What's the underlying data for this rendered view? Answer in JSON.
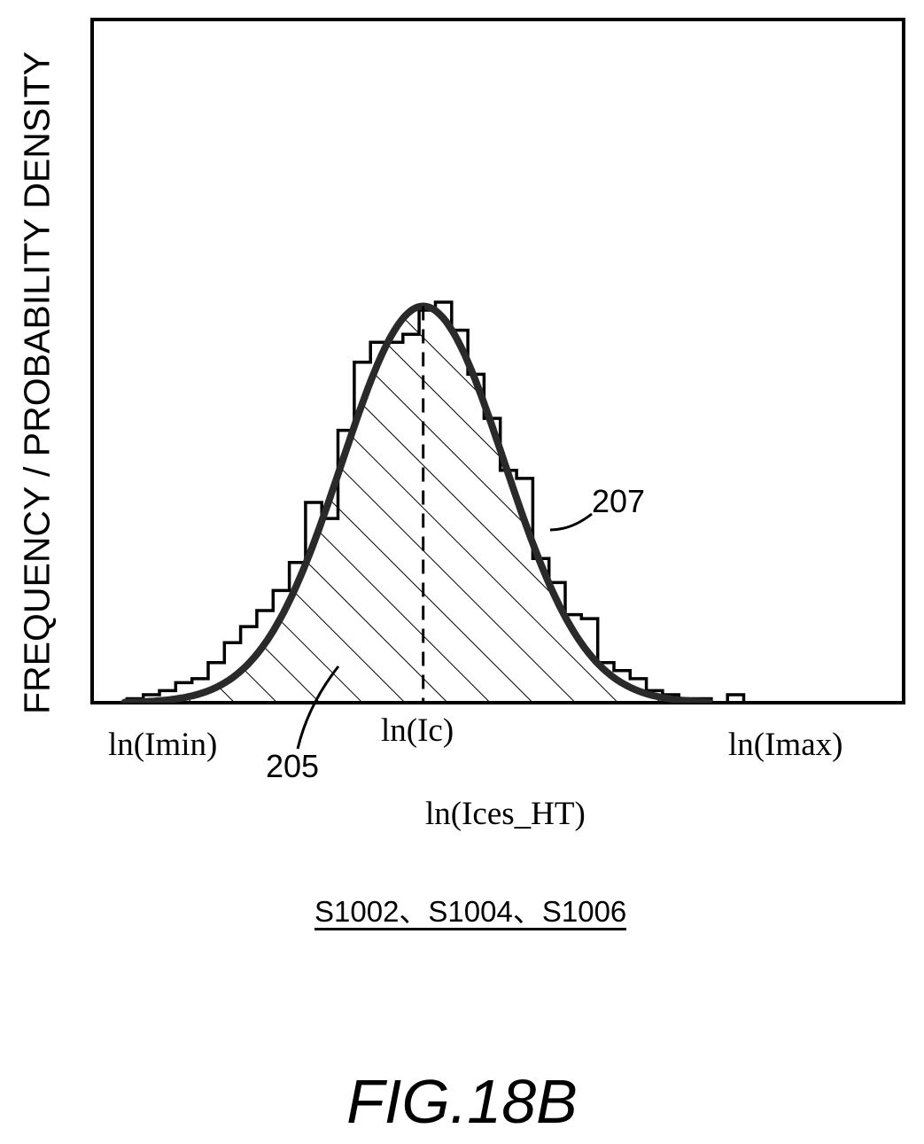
{
  "chart_data": {
    "type": "area",
    "ylabel": "FREQUENCY / PROBABILITY DENSITY",
    "xlabel": "ln(Ices_HT)",
    "x_ticks": [
      "ln(Imin)",
      "ln(Ic)",
      "ln(Imax)"
    ],
    "grid": false,
    "series": [
      {
        "name": "207",
        "kind": "probability-density-curve",
        "mean": 0.408,
        "sd": 0.1,
        "peak": 0.99
      },
      {
        "name": "205",
        "kind": "frequency-histogram",
        "bin_edges": [
          0.043,
          0.063,
          0.083,
          0.103,
          0.123,
          0.143,
          0.163,
          0.183,
          0.203,
          0.223,
          0.243,
          0.263,
          0.283,
          0.303,
          0.323,
          0.343,
          0.363,
          0.383,
          0.403,
          0.423,
          0.443,
          0.463,
          0.483,
          0.503,
          0.523,
          0.543,
          0.563,
          0.583,
          0.603,
          0.623,
          0.643,
          0.663,
          0.683,
          0.703,
          0.723,
          0.743,
          0.763,
          0.783,
          0.803
        ],
        "values": [
          0.01,
          0.02,
          0.03,
          0.05,
          0.06,
          0.1,
          0.15,
          0.19,
          0.23,
          0.28,
          0.35,
          0.5,
          0.46,
          0.68,
          0.85,
          0.9,
          0.9,
          0.92,
          0.98,
          1.0,
          0.93,
          0.82,
          0.71,
          0.58,
          0.56,
          0.36,
          0.3,
          0.22,
          0.21,
          0.1,
          0.08,
          0.06,
          0.03,
          0.02,
          0.01,
          0.01,
          0.0,
          0.02
        ]
      }
    ],
    "reference_line": {
      "x": 0.408,
      "style": "dashed",
      "label": "ln(Ic)"
    }
  },
  "annotations": {
    "ref_205": "205",
    "ref_207": "207"
  },
  "steps_label": "S1002、S1004、S1006",
  "figure_caption": "FIG.18B"
}
